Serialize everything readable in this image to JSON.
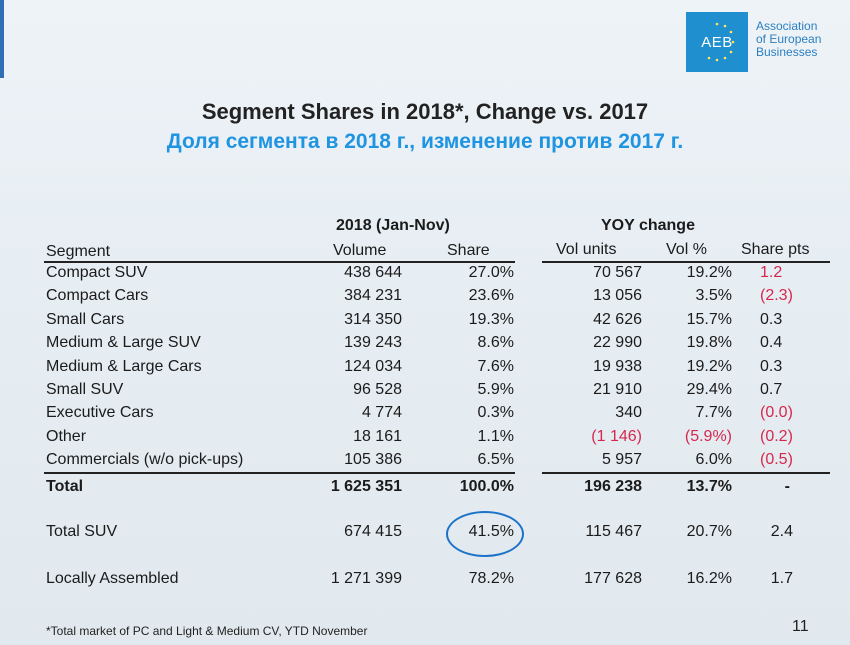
{
  "org": {
    "logo_text": "AEB",
    "name_lines": [
      "Association",
      "of European",
      "Businesses"
    ]
  },
  "title_en": "Segment Shares in 2018*, Change vs. 2017",
  "title_ru": "Доля сегмента в 2018 г., изменение против 2017 г.",
  "headers": {
    "group_2018": "2018 (Jan-Nov)",
    "group_yoy": "YOY change",
    "segment": "Segment",
    "volume": "Volume",
    "share": "Share",
    "vol_units": "Vol units",
    "vol_pct": "Vol %",
    "share_pts": "Share pts"
  },
  "rows": [
    {
      "segment": "Compact SUV",
      "volume": "438 644",
      "share": "27.0%",
      "vol_units": "70 567",
      "vol_pct": "19.2%",
      "share_pts": "1.2"
    },
    {
      "segment": "Compact Cars",
      "volume": "384 231",
      "share": "23.6%",
      "vol_units": "13 056",
      "vol_pct": "3.5%",
      "share_pts": "(2.3)"
    },
    {
      "segment": "Small Cars",
      "volume": "314 350",
      "share": "19.3%",
      "vol_units": "42 626",
      "vol_pct": "15.7%",
      "share_pts": "0.3"
    },
    {
      "segment": "Medium & Large SUV",
      "volume": "139 243",
      "share": "8.6%",
      "vol_units": "22 990",
      "vol_pct": "19.8%",
      "share_pts": "0.4"
    },
    {
      "segment": "Medium & Large Cars",
      "volume": "124 034",
      "share": "7.6%",
      "vol_units": "19 938",
      "vol_pct": "19.2%",
      "share_pts": "0.3"
    },
    {
      "segment": "Small SUV",
      "volume": "96 528",
      "share": "5.9%",
      "vol_units": "21 910",
      "vol_pct": "29.4%",
      "share_pts": "0.7"
    },
    {
      "segment": "Executive Cars",
      "volume": "4 774",
      "share": "0.3%",
      "vol_units": "340",
      "vol_pct": "7.7%",
      "share_pts": "(0.0)"
    },
    {
      "segment": "Other",
      "volume": "18 161",
      "share": "1.1%",
      "vol_units": "(1 146)",
      "vol_pct": "(5.9%)",
      "share_pts": "(0.2)"
    },
    {
      "segment": "Commercials (w/o pick-ups)",
      "volume": "105 386",
      "share": "6.5%",
      "vol_units": "5 957",
      "vol_pct": "6.0%",
      "share_pts": "(0.5)"
    }
  ],
  "total": {
    "segment": "Total",
    "volume": "1 625 351",
    "share": "100.0%",
    "vol_units": "196 238",
    "vol_pct": "13.7%",
    "share_pts": "-"
  },
  "total_suv": {
    "segment": "Total SUV",
    "volume": "674 415",
    "share": "41.5%",
    "vol_units": "115 467",
    "vol_pct": "20.7%",
    "share_pts": "2.4"
  },
  "local": {
    "segment": "Locally Assembled",
    "volume": "1 271 399",
    "share": "78.2%",
    "vol_units": "177 628",
    "vol_pct": "16.2%",
    "share_pts": "1.7"
  },
  "colors": {
    "accent_blue": "#1f94e0",
    "negative_red": "#d6284f",
    "logo_blue": "#1f8fd0",
    "circle_blue": "#1c73c9"
  },
  "footnote": "*Total market of PC and Light & Medium CV, YTD November",
  "page_number": "11"
}
